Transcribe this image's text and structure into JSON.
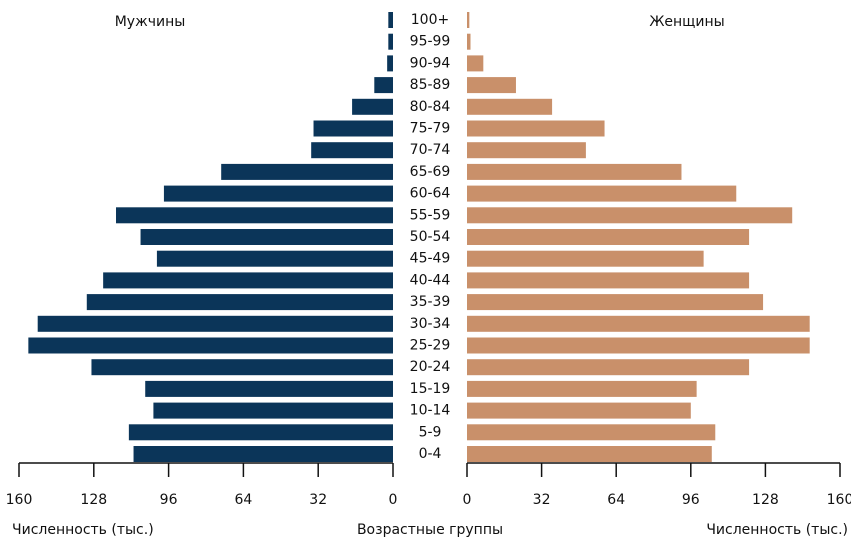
{
  "chart_data": {
    "type": "pyramid",
    "categories": [
      "100+",
      "95-99",
      "90-94",
      "85-89",
      "80-84",
      "75-79",
      "70-74",
      "65-69",
      "60-64",
      "55-59",
      "50-54",
      "45-49",
      "40-44",
      "35-39",
      "30-34",
      "25-29",
      "20-24",
      "15-19",
      "10-14",
      "5-9",
      "0-4"
    ],
    "series": [
      {
        "name": "Мужчины",
        "color": "#0b3559",
        "values": [
          2,
          2,
          2.5,
          8,
          17.5,
          34,
          35,
          73.5,
          98,
          118.5,
          108,
          101,
          124,
          131,
          152,
          156,
          129,
          106,
          102.5,
          113,
          111
        ]
      },
      {
        "name": "Женщины",
        "color": "#c9906a",
        "values": [
          1,
          1.5,
          7,
          21,
          36.5,
          59,
          51,
          92,
          115.5,
          139.5,
          121,
          101.5,
          121,
          127,
          147,
          147,
          121,
          98.5,
          96,
          106.5,
          105
        ]
      }
    ],
    "xlim": [
      0,
      160
    ],
    "xticks": [
      0,
      32,
      64,
      96,
      128,
      160
    ],
    "xlabel": "Численность (тыс.)",
    "category_label": "Возрастные группы"
  }
}
